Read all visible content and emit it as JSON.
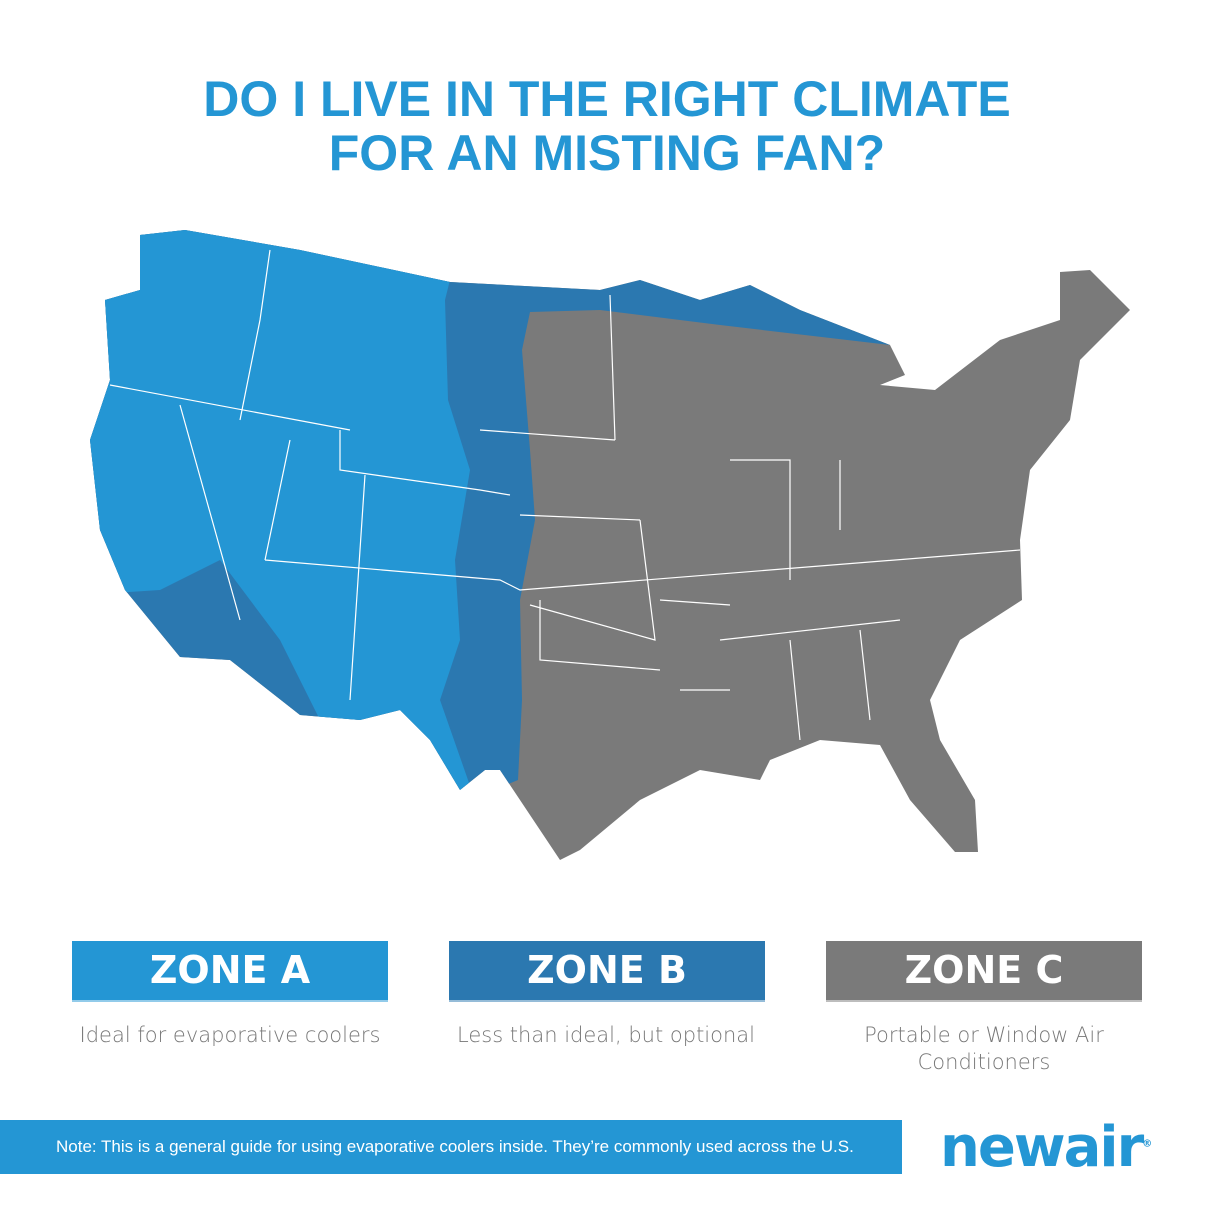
{
  "title": {
    "line1": "DO I LIVE IN THE RIGHT CLIMATE",
    "line2": "FOR AN MISTING FAN?"
  },
  "colors": {
    "zone_a": "#2496d4",
    "zone_b": "#2b78b0",
    "zone_c": "#7a7a7a"
  },
  "zones": [
    {
      "label": "ZONE A",
      "description": "Ideal for evaporative coolers"
    },
    {
      "label": "ZONE B",
      "description": "Less than ideal, but optional"
    },
    {
      "label": "ZONE C",
      "description": "Portable or Window Air Conditioners"
    }
  ],
  "note": "Note: This is a general guide for using evaporative coolers inside. They’re commonly used across the U.S.",
  "logo": {
    "text": "newair",
    "mark": "®"
  }
}
